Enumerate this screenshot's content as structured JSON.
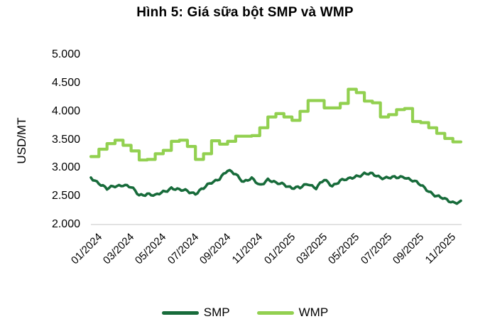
{
  "title": "Hình 5: Giá sữa bột SMP và WMP",
  "y_axis_label": "USD/MT",
  "chart_data": {
    "type": "line",
    "title": "Hình 5: Giá sữa bột SMP và WMP",
    "ylabel": "USD/MT",
    "unit": "USD/MT",
    "ylim": [
      2000,
      5000
    ],
    "y_ticks": [
      5000,
      4500,
      4000,
      3500,
      3000,
      2500,
      2000
    ],
    "y_tick_labels": [
      "5.000",
      "4.500",
      "4.000",
      "3.500",
      "3.000",
      "2.500",
      "2.000"
    ],
    "x_tick_labels": [
      "01/2024",
      "03/2024",
      "05/2024",
      "07/2024",
      "09/2024",
      "11/2024",
      "01/2025",
      "03/2025",
      "05/2025",
      "07/2025",
      "09/2025",
      "11/2025"
    ],
    "x_range": [
      "01/2024",
      "11/2025"
    ],
    "sampling": "half-monthly samples, Jan 2024 through mid-Nov 2025",
    "grid": false,
    "legend_position": "bottom",
    "axis_line_color": "#d9d9d9",
    "series": [
      {
        "name": "SMP",
        "color": "#176b3a",
        "line_style": "jagged",
        "values": [
          2830,
          2740,
          2620,
          2680,
          2710,
          2650,
          2520,
          2550,
          2500,
          2580,
          2650,
          2600,
          2600,
          2550,
          2630,
          2750,
          2820,
          2940,
          2900,
          2760,
          2800,
          2700,
          2800,
          2720,
          2720,
          2650,
          2640,
          2730,
          2650,
          2780,
          2690,
          2780,
          2790,
          2860,
          2900,
          2880,
          2840,
          2830,
          2820,
          2850,
          2780,
          2690,
          2600,
          2500,
          2440,
          2400,
          2400
        ]
      },
      {
        "name": "WMP",
        "color": "#92d050",
        "line_style": "stepped",
        "values": [
          3200,
          3330,
          3430,
          3490,
          3400,
          3300,
          3140,
          3150,
          3250,
          3310,
          3470,
          3490,
          3380,
          3150,
          3250,
          3480,
          3420,
          3470,
          3560,
          3560,
          3570,
          3710,
          3900,
          3960,
          3900,
          3840,
          4000,
          4190,
          4190,
          4060,
          4060,
          4140,
          4390,
          4330,
          4180,
          4150,
          3900,
          3940,
          4030,
          4050,
          3820,
          3800,
          3710,
          3610,
          3520,
          3460,
          3460
        ]
      }
    ]
  }
}
